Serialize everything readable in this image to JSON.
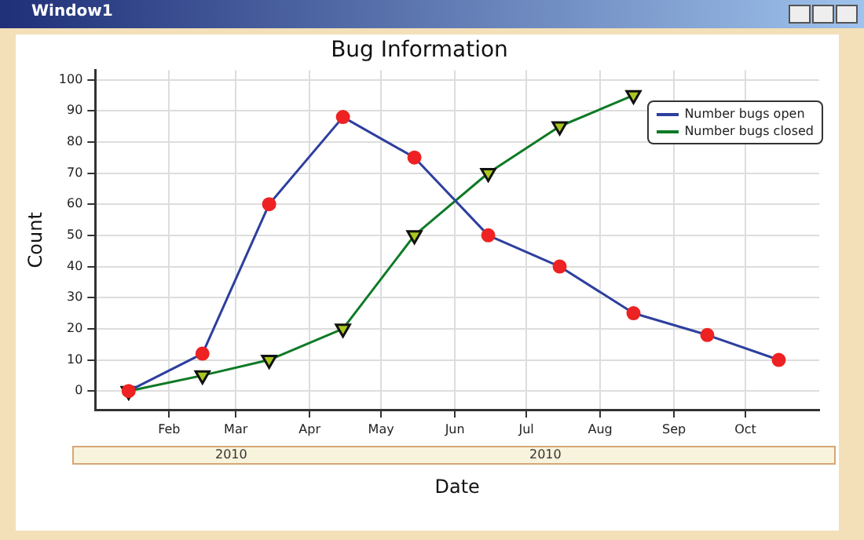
{
  "chart_data": {
    "type": "line",
    "title": "Bug Information",
    "xlabel": "Date",
    "ylabel": "Count",
    "annotations": [
      "Window1",
      "2010",
      "2010"
    ],
    "x": [
      "2010-01-15",
      "2010-02-15",
      "2010-03-15",
      "2010-04-15",
      "2010-05-15",
      "2010-06-15",
      "2010-07-15",
      "2010-08-15",
      "2010-09-15",
      "2010-10-15"
    ],
    "series": [
      {
        "name": "Number bugs open",
        "color": "#2e3f9e",
        "marker": "circle",
        "values": [
          0,
          12,
          60,
          88,
          75,
          50,
          40,
          25,
          18,
          10
        ]
      },
      {
        "name": "Number bugs closed",
        "color": "#0e7a26",
        "marker": "triangle",
        "values": [
          0,
          5,
          10,
          20,
          50,
          70,
          85,
          95,
          null,
          null
        ]
      }
    ],
    "xlim": [
      "2010-01-01",
      "2010-11-01"
    ],
    "xticks": [
      {
        "value": "2010-02-01",
        "label": "Feb"
      },
      {
        "value": "2010-03-01",
        "label": "Mar"
      },
      {
        "value": "2010-04-01",
        "label": "Apr"
      },
      {
        "value": "2010-05-01",
        "label": "May"
      },
      {
        "value": "2010-06-01",
        "label": "Jun"
      },
      {
        "value": "2010-07-01",
        "label": "Jul"
      },
      {
        "value": "2010-08-01",
        "label": "Aug"
      },
      {
        "value": "2010-09-01",
        "label": "Sep"
      },
      {
        "value": "2010-10-01",
        "label": "Oct"
      }
    ],
    "ylim": [
      -6,
      103
    ],
    "yticks": [
      0,
      10,
      20,
      30,
      40,
      50,
      60,
      70,
      80,
      90,
      100
    ],
    "grid": true,
    "legend": "top right",
    "line_style": "solid"
  }
}
